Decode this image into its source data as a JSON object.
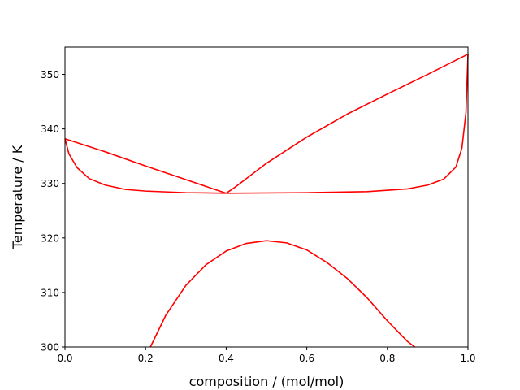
{
  "chart_data": {
    "type": "line",
    "title": "",
    "xlabel": "composition / (mol/mol)",
    "ylabel": "Temperature / K",
    "xlim": [
      0.0,
      1.0
    ],
    "ylim": [
      300,
      355
    ],
    "x_ticks": [
      0.0,
      0.2,
      0.4,
      0.6,
      0.8,
      1.0
    ],
    "x_tick_labels": [
      "0.0",
      "0.2",
      "0.4",
      "0.6",
      "0.8",
      "1.0"
    ],
    "y_ticks": [
      300,
      310,
      320,
      330,
      340,
      350
    ],
    "y_tick_labels": [
      "300",
      "310",
      "320",
      "330",
      "340",
      "350"
    ],
    "grid": false,
    "line_color": "#ff0000",
    "series": [
      {
        "x": [
          0.0,
          0.1,
          0.2,
          0.3,
          0.38,
          0.4
        ],
        "y": [
          338.2,
          335.8,
          333.2,
          330.7,
          328.7,
          328.2
        ]
      },
      {
        "x": [
          0.4,
          0.42,
          0.5,
          0.6,
          0.7,
          0.8,
          0.9,
          1.0
        ],
        "y": [
          328.2,
          329.2,
          333.7,
          338.5,
          342.7,
          346.4,
          350.0,
          353.7
        ]
      },
      {
        "x": [
          0.0,
          0.01,
          0.03,
          0.06,
          0.1,
          0.15,
          0.2,
          0.3,
          0.4
        ],
        "y": [
          338.2,
          335.4,
          332.9,
          330.9,
          329.7,
          328.9,
          328.6,
          328.3,
          328.2
        ]
      },
      {
        "x": [
          0.4,
          0.6,
          0.75,
          0.85,
          0.9,
          0.94,
          0.97,
          0.985,
          0.995,
          1.0
        ],
        "y": [
          328.2,
          328.3,
          328.5,
          329.0,
          329.7,
          330.8,
          333.0,
          336.5,
          343.0,
          353.7
        ]
      },
      {
        "x": [
          0.212,
          0.25,
          0.3,
          0.35,
          0.4,
          0.45,
          0.5,
          0.55,
          0.6,
          0.65,
          0.7,
          0.75,
          0.8,
          0.85,
          0.868
        ],
        "y": [
          300.0,
          305.8,
          311.3,
          315.1,
          317.6,
          319.0,
          319.5,
          319.1,
          317.8,
          315.5,
          312.6,
          309.0,
          304.8,
          301.0,
          300.0
        ]
      }
    ]
  }
}
